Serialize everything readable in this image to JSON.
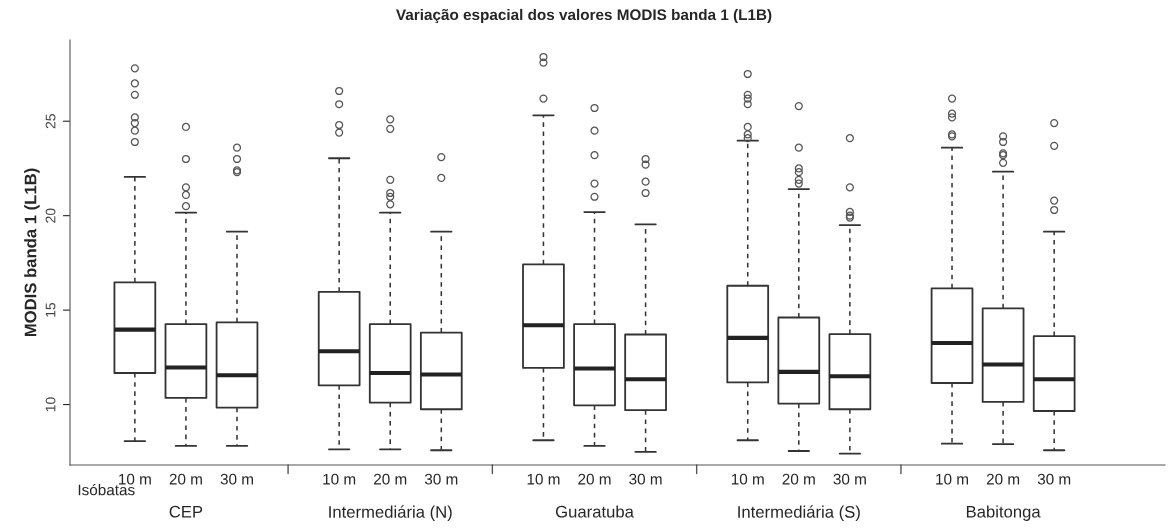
{
  "chart_data": {
    "type": "box",
    "title": "Variação espacial dos valores MODIS banda 1 (L1B)",
    "ylabel": "MODIS banda 1 (L1B)",
    "xlabel": "Isóbatas",
    "categories": [
      "10 m",
      "20 m",
      "30 m",
      null,
      "10 m",
      "20 m",
      "30 m",
      null,
      "10 m",
      "20 m",
      "30 m",
      null,
      "10 m",
      "20 m",
      "30 m",
      null,
      "10 m",
      "20 m",
      "30 m"
    ],
    "annotations": [
      "CEP",
      "Intermediária (N)",
      "Guaratuba",
      "Intermediária (S)",
      "Babitonga"
    ],
    "ylim": [
      6.8,
      29.3
    ],
    "yticks": [
      10,
      15,
      20,
      25
    ],
    "grid": false,
    "legend": false,
    "boxes": [
      {
        "low": 8.06,
        "q1": 11.67,
        "median": 13.97,
        "q3": 16.47,
        "high": 22.05,
        "outliers": [
          27.8,
          27.0,
          26.4,
          25.2,
          24.9,
          24.5,
          23.9
        ]
      },
      {
        "low": 7.81,
        "q1": 10.35,
        "median": 11.96,
        "q3": 14.26,
        "high": 20.16,
        "outliers": [
          24.7,
          23.0,
          21.5,
          21.1,
          20.5
        ]
      },
      {
        "low": 7.81,
        "q1": 9.84,
        "median": 11.55,
        "q3": 14.35,
        "high": 19.15,
        "outliers": [
          23.6,
          23.0,
          22.4,
          22.3
        ]
      },
      null,
      {
        "low": 7.63,
        "q1": 11.02,
        "median": 12.82,
        "q3": 15.97,
        "high": 23.04,
        "outliers": [
          26.6,
          25.9,
          24.8,
          24.4
        ]
      },
      {
        "low": 7.63,
        "q1": 10.1,
        "median": 11.67,
        "q3": 14.26,
        "high": 20.16,
        "outliers": [
          25.1,
          24.6,
          21.9,
          21.2,
          21.0,
          20.6
        ]
      },
      {
        "low": 7.58,
        "q1": 9.75,
        "median": 11.59,
        "q3": 13.81,
        "high": 19.15,
        "outliers": [
          23.1,
          22.0
        ]
      },
      null,
      {
        "low": 8.11,
        "q1": 11.94,
        "median": 14.2,
        "q3": 17.42,
        "high": 25.31,
        "outliers": [
          28.4,
          28.1,
          26.2
        ]
      },
      {
        "low": 7.81,
        "q1": 9.96,
        "median": 11.91,
        "q3": 14.26,
        "high": 20.19,
        "outliers": [
          25.7,
          24.5,
          23.2,
          21.7,
          21.0
        ]
      },
      {
        "low": 7.49,
        "q1": 9.7,
        "median": 11.34,
        "q3": 13.71,
        "high": 19.54,
        "outliers": [
          23.0,
          22.7,
          21.8,
          21.2
        ]
      },
      null,
      {
        "low": 8.11,
        "q1": 11.17,
        "median": 13.53,
        "q3": 16.29,
        "high": 23.97,
        "outliers": [
          27.5,
          26.4,
          26.2,
          25.9,
          24.7,
          24.3,
          24.1
        ]
      },
      {
        "low": 7.54,
        "q1": 10.05,
        "median": 11.73,
        "q3": 14.61,
        "high": 21.41,
        "outliers": [
          25.8,
          23.6,
          22.5,
          22.3,
          21.9,
          21.7
        ]
      },
      {
        "low": 7.4,
        "q1": 9.75,
        "median": 11.5,
        "q3": 13.73,
        "high": 19.5,
        "outliers": [
          24.1,
          21.5,
          20.2,
          20.0,
          19.9
        ]
      },
      null,
      {
        "low": 7.93,
        "q1": 11.14,
        "median": 13.26,
        "q3": 16.15,
        "high": 23.6,
        "outliers": [
          26.2,
          25.4,
          25.2,
          24.3,
          24.2
        ]
      },
      {
        "low": 7.9,
        "q1": 10.14,
        "median": 12.12,
        "q3": 15.09,
        "high": 22.33,
        "outliers": [
          24.2,
          23.9,
          23.3,
          23.2,
          22.8
        ]
      },
      {
        "low": 7.58,
        "q1": 9.66,
        "median": 11.34,
        "q3": 13.62,
        "high": 19.15,
        "outliers": [
          24.9,
          23.7,
          20.8,
          20.3
        ]
      }
    ]
  }
}
